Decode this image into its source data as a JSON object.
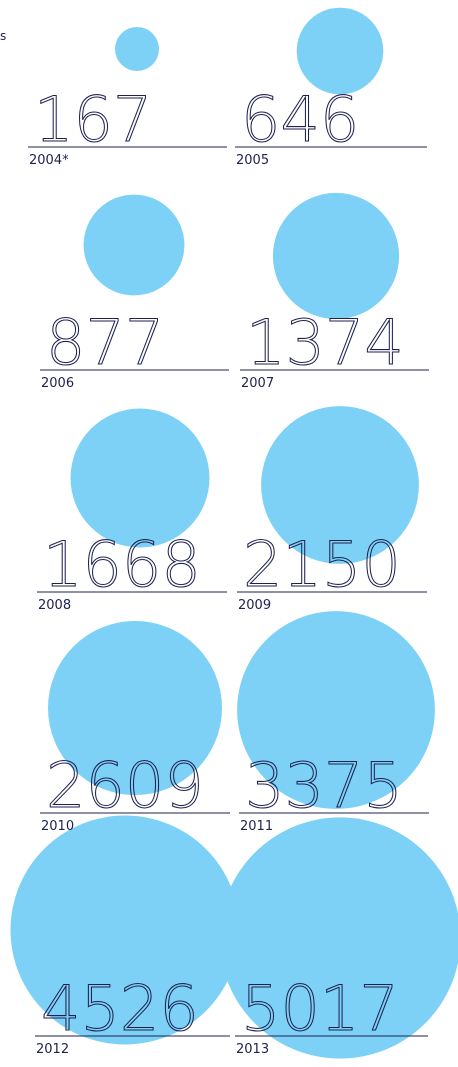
{
  "corner_text": "s",
  "colors": {
    "bubble": "#7dd1f6",
    "text": "#1f2150"
  },
  "chart_data": {
    "type": "bubble",
    "title": "",
    "points": [
      {
        "year": "2004*",
        "value": 167
      },
      {
        "year": "2005",
        "value": 646
      },
      {
        "year": "2006",
        "value": 877
      },
      {
        "year": "2007",
        "value": 1374
      },
      {
        "year": "2008",
        "value": 1668
      },
      {
        "year": "2009",
        "value": 2150
      },
      {
        "year": "2010",
        "value": 2609
      },
      {
        "year": "2011",
        "value": 3375
      },
      {
        "year": "2012",
        "value": 4526
      },
      {
        "year": "2013",
        "value": 5017
      }
    ]
  }
}
